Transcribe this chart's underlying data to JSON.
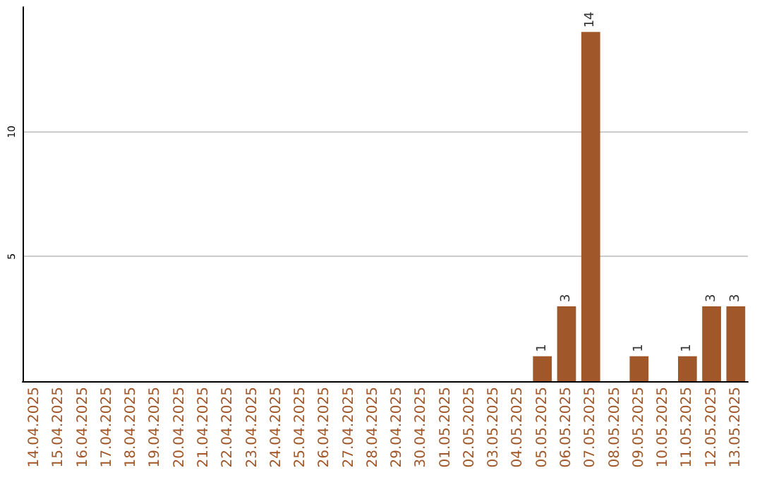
{
  "chart_data": {
    "type": "bar",
    "categories": [
      "14.04.2025",
      "15.04.2025",
      "16.04.2025",
      "17.04.2025",
      "18.04.2025",
      "19.04.2025",
      "20.04.2025",
      "21.04.2025",
      "22.04.2025",
      "23.04.2025",
      "24.04.2025",
      "25.04.2025",
      "26.04.2025",
      "27.04.2025",
      "28.04.2025",
      "29.04.2025",
      "30.04.2025",
      "01.05.2025",
      "02.05.2025",
      "03.05.2025",
      "04.05.2025",
      "05.05.2025",
      "06.05.2025",
      "07.05.2025",
      "08.05.2025",
      "09.05.2025",
      "10.05.2025",
      "11.05.2025",
      "12.05.2025",
      "13.05.2025"
    ],
    "values": [
      0,
      0,
      0,
      0,
      0,
      0,
      0,
      0,
      0,
      0,
      0,
      0,
      0,
      0,
      0,
      0,
      0,
      0,
      0,
      0,
      0,
      1,
      3,
      14,
      0,
      1,
      0,
      1,
      3,
      3
    ],
    "value_labels": [
      null,
      null,
      null,
      null,
      null,
      null,
      null,
      null,
      null,
      null,
      null,
      null,
      null,
      null,
      null,
      null,
      null,
      null,
      null,
      null,
      null,
      "1",
      "3",
      "14",
      null,
      "1",
      null,
      "1",
      "3",
      "3"
    ],
    "color": "#a0582a",
    "ylim": [
      0,
      15
    ],
    "yticks": [
      5,
      10
    ],
    "grid": "y"
  }
}
